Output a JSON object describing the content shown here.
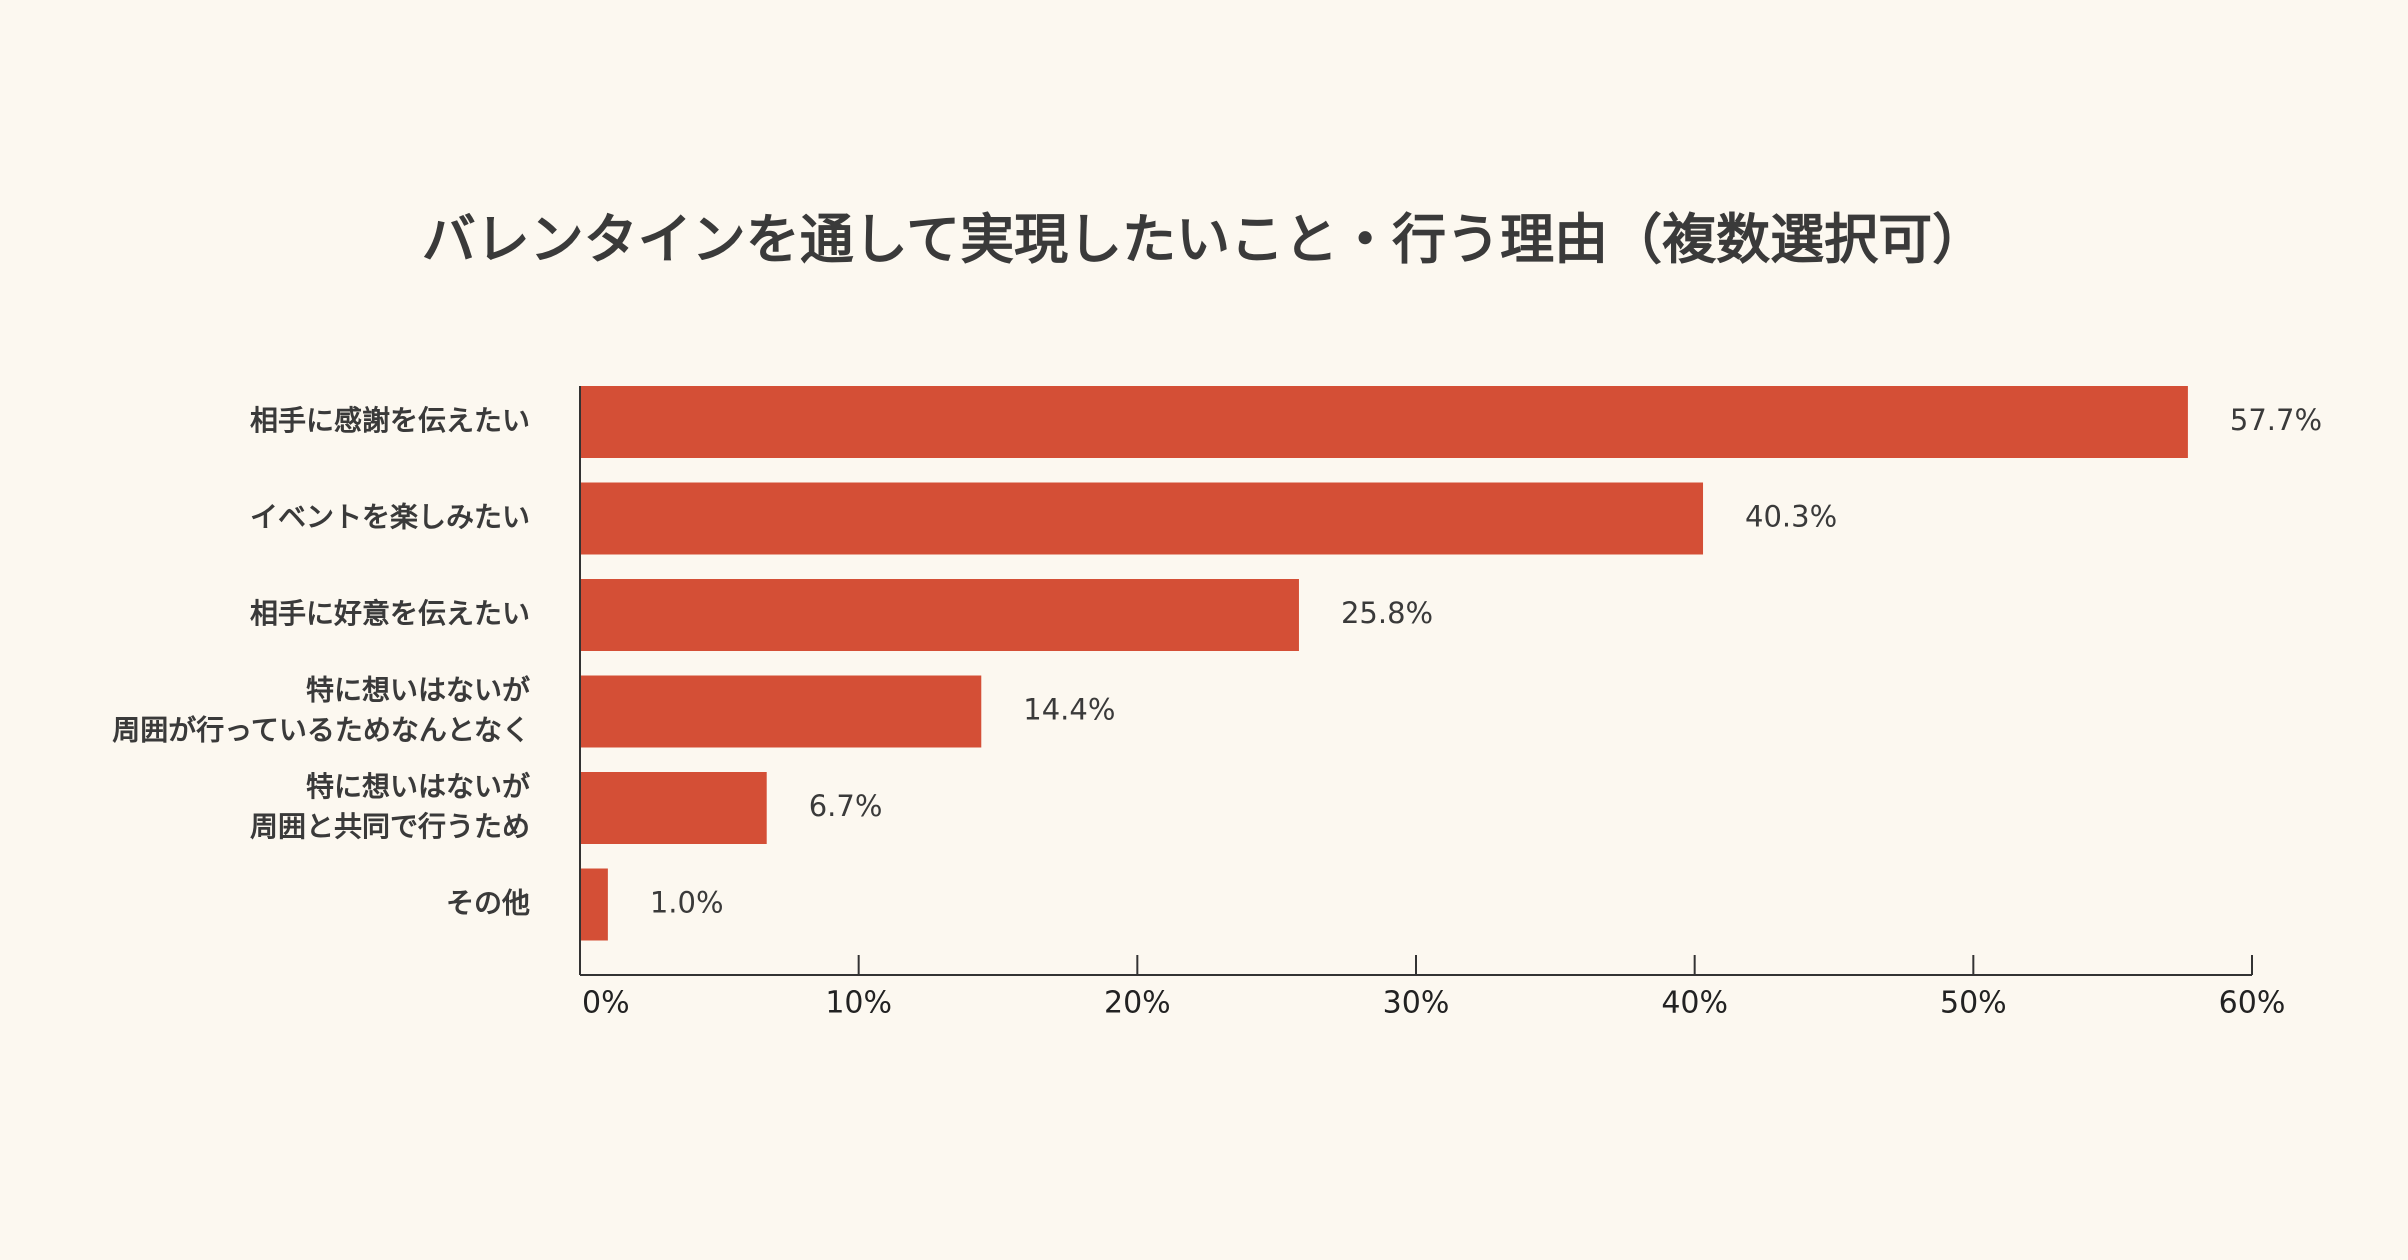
{
  "chart_data": {
    "type": "bar",
    "orientation": "horizontal",
    "title": "バレンタインを通して実現したいこと・行う理由（複数選択可）",
    "categories": [
      "相手に感謝を伝えたい",
      "イベントを楽しみたい",
      "相手に好意を伝えたい",
      "特に想いはないが\n周囲が行っているためなんとなく",
      "特に想いはないが\n周囲と共同で行うため",
      "その他"
    ],
    "values": [
      57.7,
      40.3,
      25.8,
      14.4,
      6.7,
      1.0
    ],
    "value_labels": [
      "57.7%",
      "40.3%",
      "25.8%",
      "14.4%",
      "6.7%",
      "1.0%"
    ],
    "xlim": [
      0,
      60
    ],
    "xticks": [
      0,
      10,
      20,
      30,
      40,
      50,
      60
    ],
    "xtick_labels": [
      "0%",
      "10%",
      "20%",
      "30%",
      "40%",
      "50%",
      "60%"
    ],
    "xlabel": "",
    "ylabel": "",
    "grid": false,
    "legend": "none",
    "colors": {
      "bar": "#d44f36",
      "background": "#fcf8f0",
      "axis": "#333333",
      "text": "#3a3a3a"
    }
  }
}
